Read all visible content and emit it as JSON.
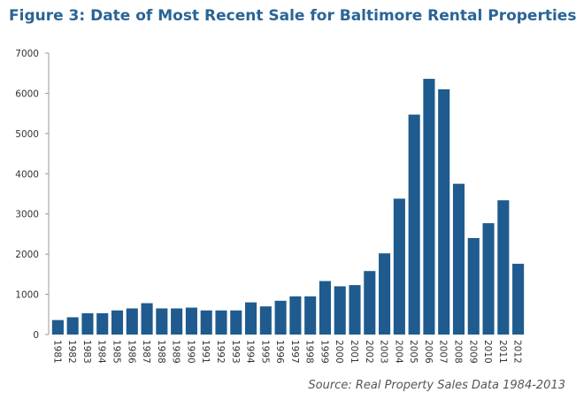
{
  "chart_data": {
    "type": "bar",
    "title": "Figure 3: Date of Most Recent Sale for Baltimore Rental Properties",
    "source": "Source: Real Property Sales Data 1984-2013",
    "xlabel": "",
    "ylabel": "",
    "ylim": [
      0,
      7000
    ],
    "yticks": [
      0,
      1000,
      2000,
      3000,
      4000,
      5000,
      6000,
      7000
    ],
    "grid": false,
    "bar_color": "#1f5b8e",
    "title_color": "#2a6496",
    "categories": [
      "1981",
      "1982",
      "1983",
      "1984",
      "1985",
      "1986",
      "1987",
      "1988",
      "1989",
      "1990",
      "1991",
      "1992",
      "1993",
      "1994",
      "1995",
      "1996",
      "1997",
      "1998",
      "1999",
      "2000",
      "2001",
      "2002",
      "2003",
      "2004",
      "2005",
      "2006",
      "2007",
      "2008",
      "2009",
      "2010",
      "2011",
      "2012"
    ],
    "values": [
      360,
      430,
      530,
      530,
      600,
      650,
      780,
      650,
      650,
      670,
      600,
      600,
      600,
      800,
      700,
      840,
      950,
      950,
      1330,
      1200,
      1230,
      1580,
      2020,
      3380,
      5470,
      6360,
      6100,
      3750,
      2400,
      2770,
      3340,
      1760
    ]
  }
}
